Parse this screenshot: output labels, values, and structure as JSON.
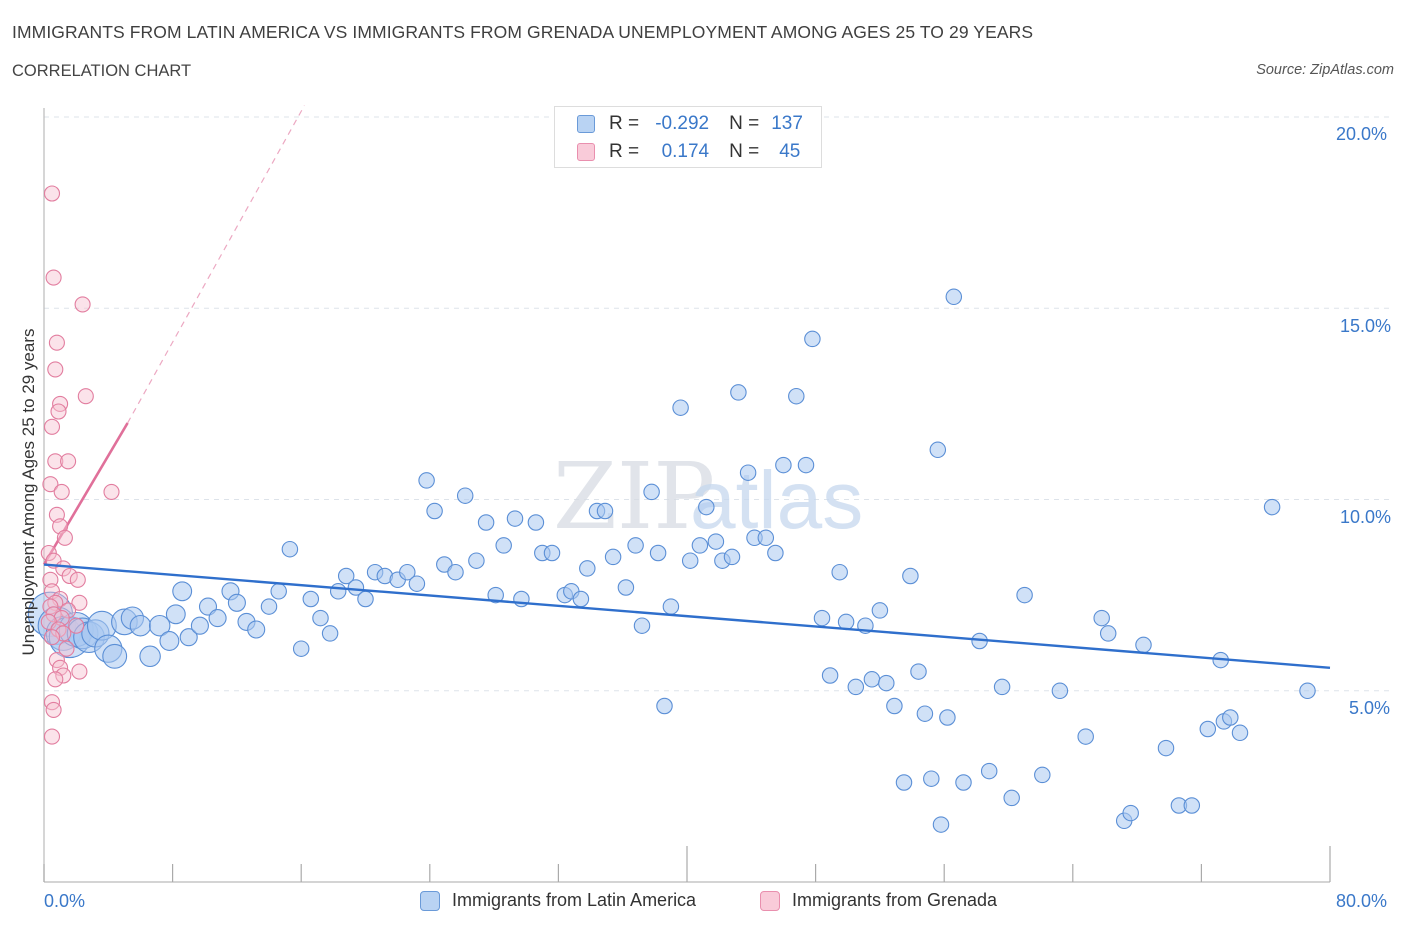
{
  "title": "IMMIGRANTS FROM LATIN AMERICA VS IMMIGRANTS FROM GRENADA UNEMPLOYMENT AMONG AGES 25 TO 29 YEARS",
  "subtitle": "CORRELATION CHART",
  "source": "Source: ZipAtlas.com",
  "watermark": {
    "zip": "ZIP",
    "atlas": "atlas"
  },
  "colors": {
    "blue_fill": "#a9c8f0",
    "blue_stroke": "#5b8fd6",
    "blue_line": "#2f6fcc",
    "pink_fill": "#f6c1d1",
    "pink_stroke": "#e27d9f",
    "pink_line": "#e0709a",
    "axis_text": "#3a78c9",
    "grid": "#dde3ea"
  },
  "legend": {
    "rows": [
      {
        "label": "R = ",
        "r": "-0.292",
        "n_label": "N = ",
        "n": "137"
      },
      {
        "label": "R = ",
        "r": "0.174",
        "n_label": "N = ",
        "n": "45"
      }
    ]
  },
  "bottom_legend": [
    "Immigrants from Latin America",
    "Immigrants from Grenada"
  ],
  "x_axis": {
    "min_label": "0.0%",
    "max_label": "80.0%"
  },
  "y_axis": {
    "label": "Unemployment Among Ages 25 to 29 years",
    "ticks": [
      "20.0%",
      "15.0%",
      "10.0%",
      "5.0%"
    ]
  },
  "chart_data": {
    "type": "scatter",
    "x_unit": "%",
    "y_unit": "%",
    "xlim": [
      0,
      80
    ],
    "ylim": [
      0,
      20.5
    ],
    "grid": true,
    "legend_placement": "top-center",
    "series": [
      {
        "name": "Immigrants from Latin America",
        "color": "#a9c8f0",
        "r": -0.292,
        "n": 137,
        "trend": {
          "x": [
            0,
            80
          ],
          "y": [
            8.3,
            5.6
          ]
        },
        "points": [
          [
            0.4,
            7.0,
            2.6
          ],
          [
            0.8,
            6.7,
            2.2
          ],
          [
            1.2,
            6.5,
            2.0
          ],
          [
            1.6,
            6.4,
            2.4
          ],
          [
            2.0,
            6.6,
            2.0
          ],
          [
            2.4,
            6.5,
            1.8
          ],
          [
            2.8,
            6.4,
            1.8
          ],
          [
            3.2,
            6.5,
            1.6
          ],
          [
            3.6,
            6.7,
            1.7
          ],
          [
            4.0,
            6.1,
            1.6
          ],
          [
            4.4,
            5.9,
            1.4
          ],
          [
            5.0,
            6.8,
            1.5
          ],
          [
            5.5,
            6.9,
            1.3
          ],
          [
            6.0,
            6.7,
            1.2
          ],
          [
            6.6,
            5.9,
            1.2
          ],
          [
            7.2,
            6.7,
            1.2
          ],
          [
            7.8,
            6.3,
            1.1
          ],
          [
            8.2,
            7.0,
            1.1
          ],
          [
            8.6,
            7.6,
            1.1
          ],
          [
            9.0,
            6.4,
            1.0
          ],
          [
            9.7,
            6.7,
            1.0
          ],
          [
            10.2,
            7.2,
            1.0
          ],
          [
            10.8,
            6.9,
            1.0
          ],
          [
            11.6,
            7.6,
            1.0
          ],
          [
            12.0,
            7.3,
            1.0
          ],
          [
            12.6,
            6.8,
            1.0
          ],
          [
            13.2,
            6.6,
            1.0
          ],
          [
            14.0,
            7.2,
            0.9
          ],
          [
            14.6,
            7.6,
            0.9
          ],
          [
            15.3,
            8.7,
            0.9
          ],
          [
            16.0,
            6.1,
            0.9
          ],
          [
            16.6,
            7.4,
            0.9
          ],
          [
            17.2,
            6.9,
            0.9
          ],
          [
            17.8,
            6.5,
            0.9
          ],
          [
            18.3,
            7.6,
            0.9
          ],
          [
            18.8,
            8.0,
            0.9
          ],
          [
            19.4,
            7.7,
            0.9
          ],
          [
            20.0,
            7.4,
            0.9
          ],
          [
            20.6,
            8.1,
            0.9
          ],
          [
            21.2,
            8.0,
            0.9
          ],
          [
            22.0,
            7.9,
            0.9
          ],
          [
            22.6,
            8.1,
            0.9
          ],
          [
            23.2,
            7.8,
            0.9
          ],
          [
            23.8,
            10.5,
            0.9
          ],
          [
            24.3,
            9.7,
            0.9
          ],
          [
            24.9,
            8.3,
            0.9
          ],
          [
            25.6,
            8.1,
            0.9
          ],
          [
            26.2,
            10.1,
            0.9
          ],
          [
            26.9,
            8.4,
            0.9
          ],
          [
            27.5,
            9.4,
            0.9
          ],
          [
            28.1,
            7.5,
            0.9
          ],
          [
            28.6,
            8.8,
            0.9
          ],
          [
            29.3,
            9.5,
            0.9
          ],
          [
            29.7,
            7.4,
            0.9
          ],
          [
            30.6,
            9.4,
            0.9
          ],
          [
            31.0,
            8.6,
            0.9
          ],
          [
            31.6,
            8.6,
            0.9
          ],
          [
            32.4,
            7.5,
            0.9
          ],
          [
            32.8,
            7.6,
            0.9
          ],
          [
            33.4,
            7.4,
            0.9
          ],
          [
            33.8,
            8.2,
            0.9
          ],
          [
            34.4,
            9.7,
            0.9
          ],
          [
            34.9,
            9.7,
            0.9
          ],
          [
            35.4,
            8.5,
            0.9
          ],
          [
            36.2,
            7.7,
            0.9
          ],
          [
            36.8,
            8.8,
            0.9
          ],
          [
            37.2,
            6.7,
            0.9
          ],
          [
            37.8,
            10.2,
            0.9
          ],
          [
            38.2,
            8.6,
            0.9
          ],
          [
            38.6,
            4.6,
            0.9
          ],
          [
            39.0,
            7.2,
            0.9
          ],
          [
            39.6,
            12.4,
            0.9
          ],
          [
            40.2,
            8.4,
            0.9
          ],
          [
            40.8,
            8.8,
            0.9
          ],
          [
            41.2,
            9.8,
            0.9
          ],
          [
            41.8,
            8.9,
            0.9
          ],
          [
            42.2,
            8.4,
            0.9
          ],
          [
            42.8,
            8.5,
            0.9
          ],
          [
            43.2,
            12.8,
            0.9
          ],
          [
            43.8,
            10.7,
            0.9
          ],
          [
            44.2,
            9.0,
            0.9
          ],
          [
            44.9,
            9.0,
            0.9
          ],
          [
            45.5,
            8.6,
            0.9
          ],
          [
            46.0,
            10.9,
            0.9
          ],
          [
            46.8,
            12.7,
            0.9
          ],
          [
            47.4,
            10.9,
            0.9
          ],
          [
            47.8,
            14.2,
            0.9
          ],
          [
            48.4,
            6.9,
            0.9
          ],
          [
            48.9,
            5.4,
            0.9
          ],
          [
            49.5,
            8.1,
            0.9
          ],
          [
            49.9,
            6.8,
            0.9
          ],
          [
            50.5,
            5.1,
            0.9
          ],
          [
            51.1,
            6.7,
            0.9
          ],
          [
            51.5,
            5.3,
            0.9
          ],
          [
            52.0,
            7.1,
            0.9
          ],
          [
            52.4,
            5.2,
            0.9
          ],
          [
            52.9,
            4.6,
            0.9
          ],
          [
            53.5,
            2.6,
            0.9
          ],
          [
            53.9,
            8.0,
            0.9
          ],
          [
            54.4,
            5.5,
            0.9
          ],
          [
            54.8,
            4.4,
            0.9
          ],
          [
            55.2,
            2.7,
            0.9
          ],
          [
            55.6,
            11.3,
            0.9
          ],
          [
            55.8,
            1.5,
            0.9
          ],
          [
            56.2,
            4.3,
            0.9
          ],
          [
            56.6,
            15.3,
            0.9
          ],
          [
            57.2,
            2.6,
            0.9
          ],
          [
            58.2,
            6.3,
            0.9
          ],
          [
            58.8,
            2.9,
            0.9
          ],
          [
            59.6,
            5.1,
            0.9
          ],
          [
            60.2,
            2.2,
            0.9
          ],
          [
            61.0,
            7.5,
            0.9
          ],
          [
            62.1,
            2.8,
            0.9
          ],
          [
            63.2,
            5.0,
            0.9
          ],
          [
            64.8,
            3.8,
            0.9
          ],
          [
            65.8,
            6.9,
            0.9
          ],
          [
            66.2,
            6.5,
            0.9
          ],
          [
            67.2,
            1.6,
            0.9
          ],
          [
            67.6,
            1.8,
            0.9
          ],
          [
            68.4,
            6.2,
            0.9
          ],
          [
            69.8,
            3.5,
            0.9
          ],
          [
            70.6,
            2.0,
            0.9
          ],
          [
            71.4,
            2.0,
            0.9
          ],
          [
            72.4,
            4.0,
            0.9
          ],
          [
            73.2,
            5.8,
            0.9
          ],
          [
            73.4,
            4.2,
            0.9
          ],
          [
            73.8,
            4.3,
            0.9
          ],
          [
            74.4,
            3.9,
            0.9
          ],
          [
            76.4,
            9.8,
            0.9
          ],
          [
            78.6,
            5.0,
            0.9
          ]
        ]
      },
      {
        "name": "Immigrants from Grenada",
        "color": "#f6c1d1",
        "r": 0.174,
        "n": 45,
        "trend": {
          "x": [
            0,
            5.2
          ],
          "y": [
            8.3,
            12.0
          ]
        },
        "trend_extension": {
          "x": [
            5.2,
            16.2
          ],
          "y": [
            12.0,
            20.3
          ]
        },
        "points": [
          [
            0.5,
            18.0
          ],
          [
            0.6,
            15.8
          ],
          [
            2.4,
            15.1
          ],
          [
            0.8,
            14.1
          ],
          [
            0.7,
            13.4
          ],
          [
            2.6,
            12.7
          ],
          [
            1.0,
            12.5
          ],
          [
            0.9,
            12.3
          ],
          [
            0.5,
            11.9
          ],
          [
            0.7,
            11.0
          ],
          [
            1.5,
            11.0
          ],
          [
            0.4,
            10.4
          ],
          [
            1.1,
            10.2
          ],
          [
            4.2,
            10.2
          ],
          [
            0.8,
            9.6
          ],
          [
            1.0,
            9.3
          ],
          [
            1.3,
            9.0
          ],
          [
            0.3,
            8.6
          ],
          [
            0.6,
            8.4
          ],
          [
            1.2,
            8.2
          ],
          [
            1.6,
            8.0
          ],
          [
            0.4,
            7.9
          ],
          [
            2.1,
            7.9
          ],
          [
            0.5,
            7.6
          ],
          [
            1.0,
            7.4
          ],
          [
            0.7,
            7.3
          ],
          [
            2.2,
            7.3
          ],
          [
            0.4,
            7.2
          ],
          [
            1.5,
            7.1
          ],
          [
            0.6,
            7.0
          ],
          [
            1.1,
            6.9
          ],
          [
            0.3,
            6.8
          ],
          [
            2.0,
            6.7
          ],
          [
            0.9,
            6.6
          ],
          [
            1.2,
            6.5
          ],
          [
            0.5,
            6.4
          ],
          [
            1.4,
            6.1
          ],
          [
            0.8,
            5.8
          ],
          [
            1.0,
            5.6
          ],
          [
            2.2,
            5.5
          ],
          [
            1.2,
            5.4
          ],
          [
            0.7,
            5.3
          ],
          [
            0.5,
            4.7
          ],
          [
            0.6,
            4.5
          ],
          [
            0.5,
            3.8
          ]
        ]
      }
    ]
  }
}
